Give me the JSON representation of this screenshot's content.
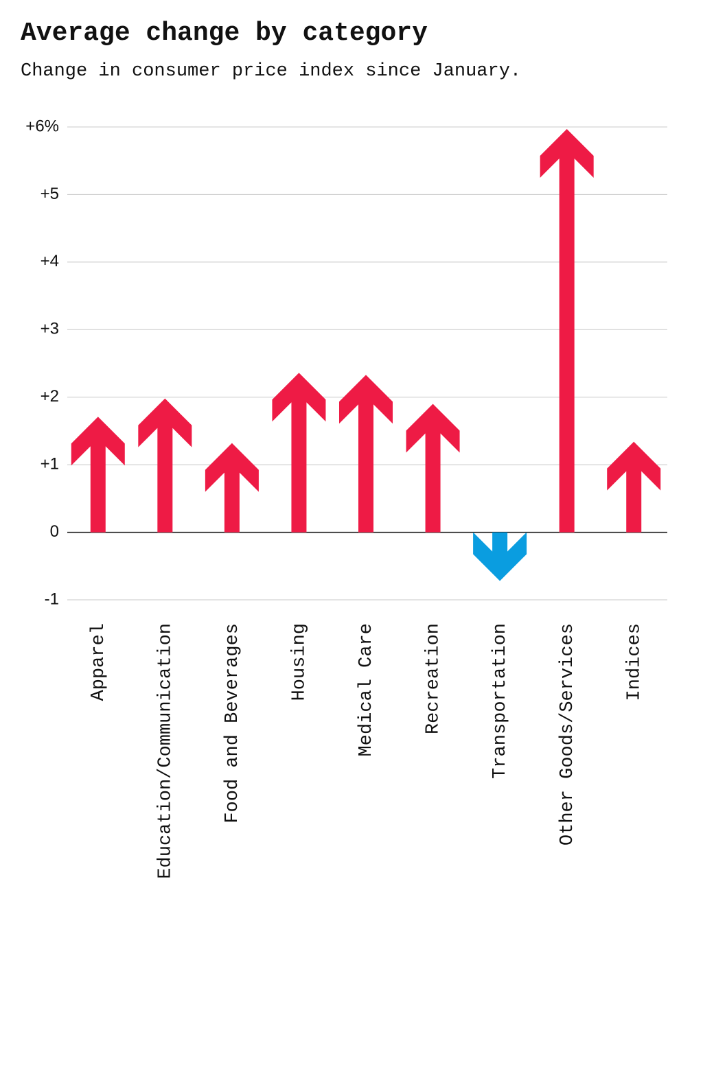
{
  "chart_data": {
    "type": "arrow",
    "title": "Average change by category",
    "subtitle": "Change in consumer price index since January.",
    "categories": [
      "Apparel",
      "Education/Communication",
      "Food and Beverages",
      "Housing",
      "Medical Care",
      "Recreation",
      "Transportation",
      "Other Goods/Services",
      "Indices"
    ],
    "values": [
      1.71,
      1.98,
      1.32,
      2.36,
      2.33,
      1.9,
      -0.72,
      5.97,
      1.34
    ],
    "color": "#ee1b45",
    "negative_color": "#0a9de0",
    "ylim": [
      -1,
      6
    ],
    "yticks": [
      -1,
      0,
      {
        "value": 1,
        "label": "+1"
      },
      {
        "value": 2,
        "label": "+2"
      },
      {
        "value": 3,
        "label": "+3"
      },
      {
        "value": 4,
        "label": "+4"
      },
      {
        "value": 5,
        "label": "+5"
      },
      {
        "value": 6,
        "label": "+6%"
      }
    ],
    "grid": true
  }
}
